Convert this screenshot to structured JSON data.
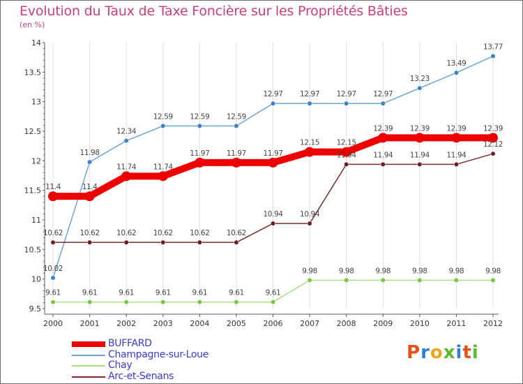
{
  "title": "Evolution du Taux de Taxe Foncière sur les Propriétés Bâties",
  "subtitle": "(en %)",
  "logo": {
    "text": "Proxiti",
    "letters": [
      {
        "char": "P",
        "color": "#e8501a"
      },
      {
        "char": "r",
        "color": "#2e7fd8"
      },
      {
        "char": "o",
        "color": "#f2a21c"
      },
      {
        "char": "x",
        "color": "#5cb82e"
      },
      {
        "char": "i",
        "color": "#2e7fd8"
      },
      {
        "char": "t",
        "color": "#e8501a"
      },
      {
        "char": "i",
        "color": "#5cb82e"
      }
    ]
  },
  "colors": {
    "title": "#c8407d",
    "legend_text": "#3a3ad8",
    "axis": "#555555",
    "tick_minor": "#cc3333",
    "grid": "#dddddd"
  },
  "chart_data": {
    "type": "line",
    "title": "Evolution du Taux de Taxe Foncière sur les Propriétés Bâties",
    "ylabel": "(en %)",
    "xlabel": "",
    "x": [
      "2000",
      "2001",
      "2002",
      "2003",
      "2004",
      "2005",
      "2006",
      "2007",
      "2008",
      "2009",
      "2010",
      "2011",
      "2012"
    ],
    "ylim": [
      9.5,
      14
    ],
    "yticks": [
      9.5,
      10,
      10.5,
      11,
      11.5,
      12,
      12.5,
      13,
      13.5,
      14
    ],
    "ytick_labels": [
      "9.5",
      "10",
      "10.5",
      "11",
      "11.5",
      "12",
      "12.5",
      "13",
      "13.5",
      "14"
    ],
    "grid": "vertical",
    "legend_position": "bottom-left",
    "series": [
      {
        "name": "BUFFARD",
        "color": "#ee0000",
        "emphasis": "thick",
        "values": [
          11.4,
          11.4,
          11.74,
          11.74,
          11.97,
          11.97,
          11.97,
          12.15,
          12.15,
          12.39,
          12.39,
          12.39,
          12.39
        ],
        "labels": [
          "11.4",
          "11.4",
          "11.74",
          "11.74",
          "11.97",
          "11.97",
          "11.97",
          "12.15",
          "12.15",
          "12.39",
          "12.39",
          "12.39",
          "12.39"
        ]
      },
      {
        "name": "Champagne-sur-Loue",
        "color": "#6aa5d6",
        "marker_color": "#3a82c6",
        "emphasis": "thin",
        "values": [
          10.02,
          11.98,
          12.34,
          12.59,
          12.59,
          12.59,
          12.97,
          12.97,
          12.97,
          12.97,
          13.23,
          13.49,
          13.77
        ],
        "labels": [
          "10.02",
          "11.98",
          "12.34",
          "12.59",
          "12.59",
          "12.59",
          "12.97",
          "12.97",
          "12.97",
          "12.97",
          "13.23",
          "13.49",
          "13.77"
        ]
      },
      {
        "name": "Chay",
        "color": "#a8dd80",
        "marker_color": "#7cc444",
        "emphasis": "thin",
        "values": [
          9.61,
          9.61,
          9.61,
          9.61,
          9.61,
          9.61,
          9.61,
          9.98,
          9.98,
          9.98,
          9.98,
          9.98,
          9.98
        ],
        "labels": [
          "9.61",
          "9.61",
          "9.61",
          "9.61",
          "9.61",
          "9.61",
          "9.61",
          "9.98",
          "9.98",
          "9.98",
          "9.98",
          "9.98",
          "9.98"
        ]
      },
      {
        "name": "Arc-et-Senans",
        "color": "#7a2a2a",
        "marker_color": "#6e1e1e",
        "emphasis": "thin",
        "values": [
          10.62,
          10.62,
          10.62,
          10.62,
          10.62,
          10.62,
          10.94,
          10.94,
          11.94,
          11.94,
          11.94,
          11.94,
          12.12
        ],
        "labels": [
          "10.62",
          "10.62",
          "10.62",
          "10.62",
          "10.62",
          "10.62",
          "10.94",
          "10.94",
          "11.94",
          "11.94",
          "11.94",
          "11.94",
          "12.12"
        ]
      }
    ]
  }
}
